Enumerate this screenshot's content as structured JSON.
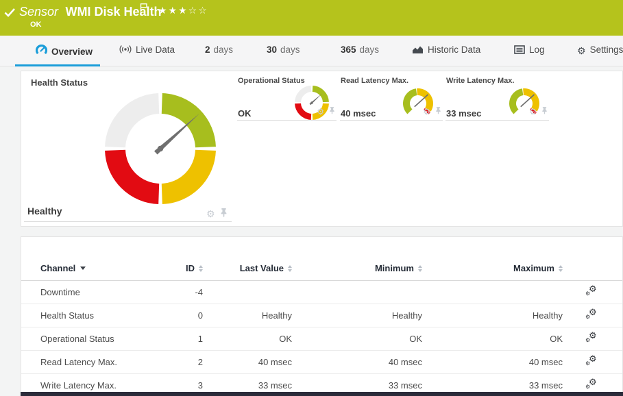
{
  "header": {
    "type_label": "Sensor",
    "title": "WMI Disk Health",
    "status": "OK",
    "rating": {
      "filled": 3,
      "total": 5,
      "stars_filled": "★★★",
      "stars_empty": "☆☆"
    }
  },
  "tabs": [
    {
      "label": "Overview",
      "icon": "gauge-icon",
      "active": true
    },
    {
      "label": "Live Data",
      "icon": "live-data-icon"
    },
    {
      "prefix": "2",
      "label": "days"
    },
    {
      "prefix": "30",
      "label": "days"
    },
    {
      "prefix": "365",
      "label": "days"
    },
    {
      "label": "Historic Data",
      "icon": "historic-data-icon"
    },
    {
      "label": "Log",
      "icon": "log-icon"
    },
    {
      "label": "Settings",
      "icon": "gear-icon"
    }
  ],
  "gauges": {
    "primary": {
      "title": "Health Status",
      "value": "Healthy",
      "style": "quadrant-donut",
      "needle_angle_deg": 48
    },
    "mini": [
      {
        "title": "Operational Status",
        "value": "OK",
        "style": "quadrant-donut",
        "needle_angle_deg": 48
      },
      {
        "title": "Read Latency Max.",
        "value": "40 msec",
        "style": "arc-270",
        "needle_angle_deg": 48
      },
      {
        "title": "Write Latency Max.",
        "value": "33 msec",
        "style": "arc-270",
        "needle_angle_deg": 48
      }
    ]
  },
  "table": {
    "columns": [
      "Channel",
      "ID",
      "Last Value",
      "Minimum",
      "Maximum"
    ],
    "sorted_by": "Channel",
    "rows": [
      [
        "Downtime",
        "-4",
        "",
        "",
        ""
      ],
      [
        "Health Status",
        "0",
        "Healthy",
        "Healthy",
        "Healthy"
      ],
      [
        "Operational Status",
        "1",
        "OK",
        "OK",
        "OK"
      ],
      [
        "Read Latency Max.",
        "2",
        "40 msec",
        "40 msec",
        "40 msec"
      ],
      [
        "Write Latency Max.",
        "3",
        "33 msec",
        "33 msec",
        "33 msec"
      ]
    ]
  },
  "colors": {
    "status_ok_green": "#b5c31c",
    "gauge_green": "#a7be1e",
    "gauge_yellow": "#eec100",
    "gauge_red": "#e20b12",
    "gauge_gray": "#ededed",
    "accent_blue": "#1a9dd9",
    "footer_dark": "#2b2b3a"
  }
}
